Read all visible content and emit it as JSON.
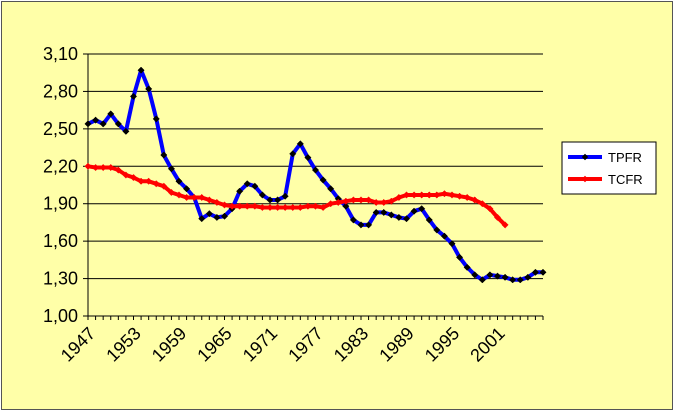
{
  "chart_data": {
    "type": "line",
    "title": "",
    "xlabel": "",
    "ylabel": "",
    "ylim": [
      1.0,
      3.1
    ],
    "yticks": [
      "1,00",
      "1,30",
      "1,60",
      "1,90",
      "2,20",
      "2,50",
      "2,80",
      "3,10"
    ],
    "yticks_values": [
      1.0,
      1.3,
      1.6,
      1.9,
      2.2,
      2.5,
      2.8,
      3.1
    ],
    "xlim": [
      1947,
      2007
    ],
    "xticks": [
      "1947",
      "1953",
      "1959",
      "1965",
      "1971",
      "1977",
      "1983",
      "1989",
      "1995",
      "2001"
    ],
    "xticks_values": [
      1947,
      1953,
      1959,
      1965,
      1971,
      1977,
      1983,
      1989,
      1995,
      2001
    ],
    "grid": "horizontal",
    "legend_position": "right",
    "series": [
      {
        "name": "TPFR",
        "color": "#0000ff",
        "marker_color": "#000000",
        "x": [
          1947,
          1948,
          1949,
          1950,
          1951,
          1952,
          1953,
          1954,
          1955,
          1956,
          1957,
          1958,
          1959,
          1960,
          1961,
          1962,
          1963,
          1964,
          1965,
          1966,
          1967,
          1968,
          1969,
          1970,
          1971,
          1972,
          1973,
          1974,
          1975,
          1976,
          1977,
          1978,
          1979,
          1980,
          1981,
          1982,
          1983,
          1984,
          1985,
          1986,
          1987,
          1988,
          1989,
          1990,
          1991,
          1992,
          1993,
          1994,
          1995,
          1996,
          1997,
          1998,
          1999,
          2000,
          2001,
          2002,
          2003,
          2004,
          2005,
          2006,
          2007
        ],
        "y": [
          2.54,
          2.57,
          2.54,
          2.62,
          2.54,
          2.48,
          2.76,
          2.97,
          2.82,
          2.58,
          2.29,
          2.18,
          2.08,
          2.02,
          1.95,
          1.78,
          1.82,
          1.79,
          1.8,
          1.86,
          2.0,
          2.06,
          2.04,
          1.97,
          1.93,
          1.93,
          1.96,
          2.3,
          2.38,
          2.27,
          2.17,
          2.09,
          2.02,
          1.94,
          1.88,
          1.77,
          1.73,
          1.73,
          1.83,
          1.83,
          1.81,
          1.79,
          1.78,
          1.84,
          1.86,
          1.77,
          1.69,
          1.64,
          1.58,
          1.47,
          1.39,
          1.33,
          1.29,
          1.33,
          1.32,
          1.31,
          1.29,
          1.29,
          1.31,
          1.35,
          1.35
        ]
      },
      {
        "name": "TCFR",
        "color": "#ff0000",
        "marker_color": "#ff0000",
        "x": [
          1947,
          1948,
          1949,
          1950,
          1951,
          1952,
          1953,
          1954,
          1955,
          1956,
          1957,
          1958,
          1959,
          1960,
          1961,
          1962,
          1963,
          1964,
          1965,
          1966,
          1967,
          1968,
          1969,
          1970,
          1971,
          1972,
          1973,
          1974,
          1975,
          1976,
          1977,
          1978,
          1979,
          1980,
          1981,
          1982,
          1983,
          1984,
          1985,
          1986,
          1987,
          1988,
          1989,
          1990,
          1991,
          1992,
          1993,
          1994,
          1995,
          1996,
          1997,
          1998,
          1999,
          2000,
          2001,
          2002
        ],
        "y": [
          2.2,
          2.19,
          2.19,
          2.19,
          2.17,
          2.13,
          2.11,
          2.08,
          2.08,
          2.06,
          2.04,
          1.99,
          1.97,
          1.95,
          1.95,
          1.95,
          1.93,
          1.91,
          1.89,
          1.88,
          1.88,
          1.88,
          1.88,
          1.87,
          1.87,
          1.87,
          1.87,
          1.87,
          1.87,
          1.88,
          1.88,
          1.87,
          1.9,
          1.91,
          1.92,
          1.93,
          1.93,
          1.93,
          1.91,
          1.91,
          1.92,
          1.95,
          1.97,
          1.97,
          1.97,
          1.97,
          1.97,
          1.98,
          1.97,
          1.96,
          1.95,
          1.93,
          1.9,
          1.86,
          1.79,
          1.73
        ]
      }
    ]
  }
}
